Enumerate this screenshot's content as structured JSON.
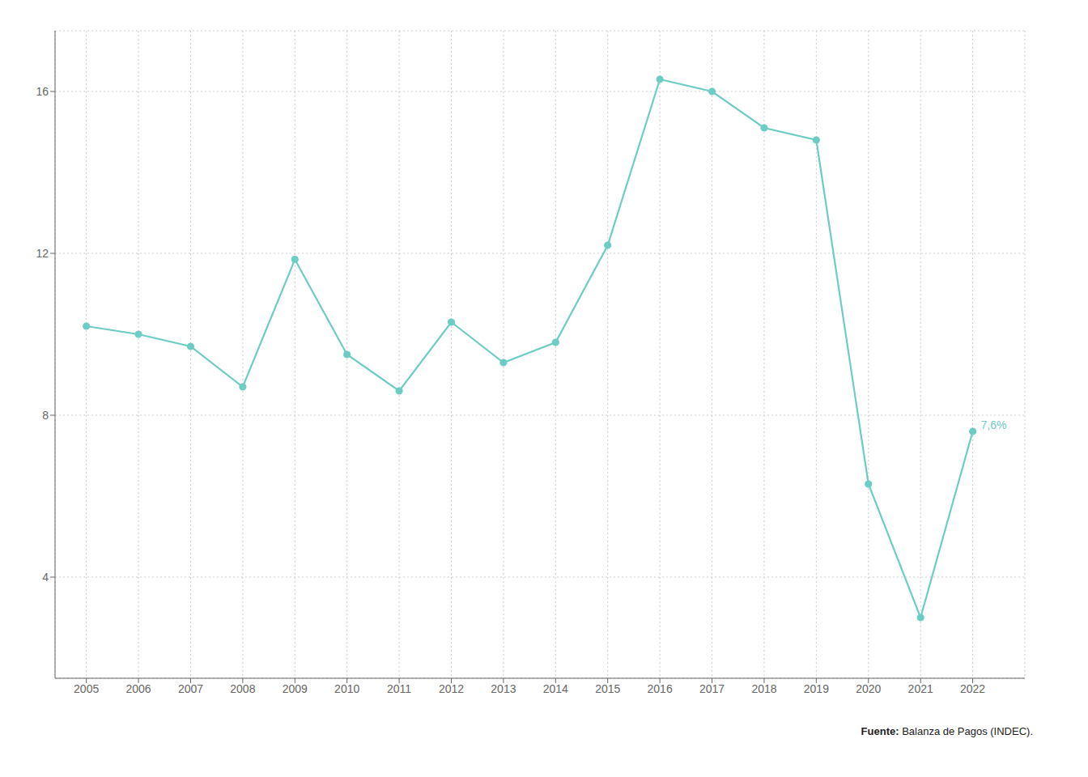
{
  "chart_data": {
    "type": "line",
    "x": [
      2005,
      2006,
      2007,
      2008,
      2009,
      2010,
      2011,
      2012,
      2013,
      2014,
      2015,
      2016,
      2017,
      2018,
      2019,
      2020,
      2021,
      2022
    ],
    "values": [
      10.2,
      10.0,
      9.7,
      8.7,
      11.85,
      9.5,
      8.6,
      10.3,
      9.3,
      9.8,
      12.2,
      16.3,
      16.0,
      15.1,
      14.8,
      6.3,
      3.0,
      7.6
    ],
    "color": "#6DCCC4",
    "marker": "circle",
    "xlim": [
      2004.4,
      2023.0
    ],
    "xticks": [
      2005,
      2006,
      2007,
      2008,
      2009,
      2010,
      2011,
      2012,
      2013,
      2014,
      2015,
      2016,
      2017,
      2018,
      2019,
      2020,
      2021,
      2022
    ],
    "ylim": [
      1.5,
      17.5
    ],
    "yticks": [
      4,
      8,
      12,
      16
    ],
    "grid": true,
    "annotations": [
      {
        "text": "7,6%",
        "x": 2022,
        "y": 7.6,
        "color": "#6DCCC4"
      }
    ],
    "source": {
      "bold": "Fuente:",
      "text": " Balanza de Pagos (INDEC)."
    }
  }
}
